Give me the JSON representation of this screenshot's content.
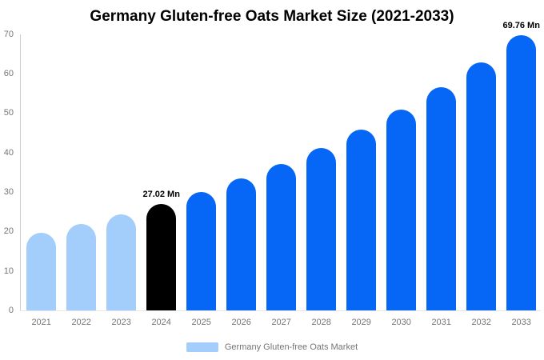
{
  "chart_data": {
    "type": "bar",
    "title": "Germany Gluten-free Oats Market Size (2021-2033)",
    "categories": [
      "2021",
      "2022",
      "2023",
      "2024",
      "2025",
      "2026",
      "2027",
      "2028",
      "2029",
      "2030",
      "2031",
      "2032",
      "2033"
    ],
    "series": [
      {
        "name": "Germany Gluten-free Oats Market",
        "values": [
          19.68,
          21.87,
          24.31,
          27.02,
          30.03,
          33.37,
          37.09,
          41.22,
          45.81,
          50.91,
          56.58,
          62.88,
          69.76
        ]
      }
    ],
    "unit": "Mn",
    "ylim": [
      0,
      70
    ],
    "yticks": [
      0,
      10,
      20,
      30,
      40,
      50,
      60,
      70
    ],
    "grid": false,
    "legend_position": "bottom",
    "annotations": [
      {
        "category": "2024",
        "text": "27.02 Mn"
      },
      {
        "category": "2033",
        "text": "69.76 Mn"
      }
    ],
    "bar_colors": [
      "#A3CDFB",
      "#A3CDFB",
      "#A3CDFB",
      "#000000",
      "#0666F5",
      "#0666F5",
      "#0666F5",
      "#0666F5",
      "#0666F5",
      "#0666F5",
      "#0666F5",
      "#0666F5",
      "#0666F5"
    ],
    "colors": {
      "historical_bar": "#A3CDFB",
      "base_year_bar": "#000000",
      "forecast_bar": "#0666F5",
      "axis_text": "#757575",
      "axis_line": "#cccccc"
    }
  },
  "legend": {
    "items": [
      {
        "label": "Germany Gluten-free Oats Market",
        "color": "#A3CDFB"
      }
    ]
  }
}
